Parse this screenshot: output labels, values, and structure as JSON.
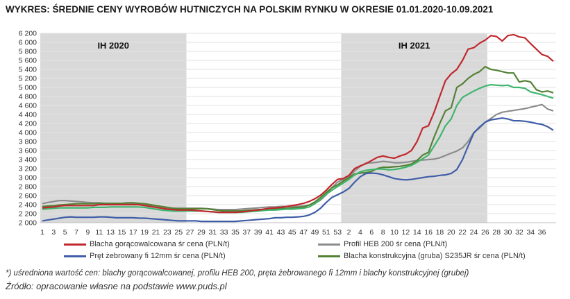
{
  "chart_data": {
    "type": "line",
    "title": "WYKRES: ŚREDNIE CENY WYROBÓW HUTNICZYCH NA POLSKIM RYNKU W OKRESIE 01.01.2020-10.09.2021",
    "x_ticks": [
      "1",
      "3",
      "5",
      "7",
      "9",
      "11",
      "13",
      "15",
      "17",
      "19",
      "21",
      "23",
      "25",
      "27",
      "29",
      "31",
      "33",
      "35",
      "37",
      "39",
      "41",
      "43",
      "45",
      "47",
      "49",
      "51",
      "53",
      "2",
      "4",
      "6",
      "8",
      "10",
      "12",
      "14",
      "16",
      "18",
      "20",
      "22",
      "24",
      "26",
      "28",
      "30",
      "32",
      "34",
      "36"
    ],
    "ylim": [
      2000,
      6200
    ],
    "y_ticks": [
      "2 000",
      "2 200",
      "2 400",
      "2 600",
      "2 800",
      "3 000",
      "3 200",
      "3 400",
      "3 600",
      "3 800",
      "4 000",
      "4 200",
      "4 400",
      "4 600",
      "4 800",
      "5 000",
      "5 200",
      "5 400",
      "5 600",
      "5 800",
      "6 000",
      "6 200"
    ],
    "bands": [
      {
        "label": "IH 2020",
        "from_week": 1,
        "to_week": 26,
        "color": "#d9d9d9"
      },
      {
        "label": "IH 2021",
        "from_week": 54,
        "to_week": 79,
        "color": "#d9d9d9"
      }
    ],
    "series": [
      {
        "name": "Blacha gorącowalcowana śr cena (PLN/t)",
        "color": "#c0282d",
        "values": [
          2330,
          2340,
          2350,
          2370,
          2380,
          2380,
          2380,
          2380,
          2380,
          2380,
          2400,
          2400,
          2400,
          2400,
          2400,
          2400,
          2400,
          2400,
          2380,
          2360,
          2340,
          2320,
          2300,
          2290,
          2280,
          2280,
          2280,
          2270,
          2260,
          2250,
          2240,
          2230,
          2230,
          2230,
          2230,
          2240,
          2250,
          2270,
          2280,
          2300,
          2320,
          2330,
          2340,
          2360,
          2380,
          2400,
          2430,
          2470,
          2530,
          2610,
          2720,
          2850,
          2960,
          2980,
          3050,
          3200,
          3260,
          3310,
          3380,
          3450,
          3480,
          3450,
          3430,
          3480,
          3520,
          3600,
          3800,
          4100,
          4150,
          4450,
          4800,
          5150,
          5300,
          5400,
          5600,
          5850,
          5880,
          5980,
          6050,
          6150,
          6130,
          6030,
          6150,
          6170,
          6120,
          6100,
          5970,
          5850,
          5730,
          5690,
          5580
        ]
      },
      {
        "name": "Profil HEB 200 śr cena (PLN/t)",
        "color": "#8c8c8c",
        "values": [
          2420,
          2450,
          2470,
          2490,
          2490,
          2480,
          2470,
          2460,
          2450,
          2440,
          2440,
          2430,
          2430,
          2430,
          2430,
          2430,
          2430,
          2420,
          2410,
          2390,
          2370,
          2350,
          2330,
          2320,
          2320,
          2320,
          2320,
          2320,
          2320,
          2310,
          2300,
          2290,
          2290,
          2290,
          2290,
          2300,
          2310,
          2320,
          2330,
          2340,
          2350,
          2350,
          2360,
          2360,
          2360,
          2360,
          2370,
          2390,
          2430,
          2500,
          2620,
          2780,
          2900,
          2960,
          3020,
          3150,
          3250,
          3320,
          3330,
          3340,
          3360,
          3350,
          3330,
          3330,
          3340,
          3360,
          3380,
          3390,
          3400,
          3410,
          3440,
          3490,
          3540,
          3590,
          3660,
          3800,
          4000,
          4100,
          4230,
          4310,
          4400,
          4450,
          4470,
          4490,
          4510,
          4530,
          4560,
          4590,
          4620,
          4520,
          4480
        ]
      },
      {
        "name": "Pręt żebrowany fi 12mm  śr cena (PLN/t)",
        "color": "#3f5ea8",
        "values": [
          2040,
          2060,
          2080,
          2100,
          2120,
          2130,
          2120,
          2120,
          2120,
          2120,
          2130,
          2130,
          2120,
          2110,
          2110,
          2110,
          2110,
          2100,
          2100,
          2090,
          2080,
          2070,
          2060,
          2050,
          2040,
          2040,
          2040,
          2040,
          2030,
          2030,
          2030,
          2030,
          2030,
          2030,
          2030,
          2040,
          2050,
          2060,
          2070,
          2080,
          2090,
          2110,
          2110,
          2120,
          2120,
          2130,
          2140,
          2170,
          2230,
          2320,
          2450,
          2560,
          2620,
          2680,
          2760,
          2900,
          3020,
          3090,
          3100,
          3090,
          3060,
          3020,
          2980,
          2960,
          2950,
          2960,
          2980,
          3000,
          3020,
          3030,
          3050,
          3060,
          3090,
          3180,
          3400,
          3700,
          3990,
          4120,
          4230,
          4280,
          4300,
          4320,
          4300,
          4260,
          4260,
          4250,
          4230,
          4200,
          4180,
          4130,
          4050
        ]
      },
      {
        "name": "Blacha konstrukcyjna (gruba) S235JR śr cena (PLN/t)",
        "color": "#548235",
        "values": [
          2360,
          2370,
          2380,
          2390,
          2400,
          2410,
          2420,
          2420,
          2420,
          2420,
          2430,
          2430,
          2430,
          2430,
          2430,
          2440,
          2440,
          2430,
          2420,
          2400,
          2380,
          2360,
          2340,
          2320,
          2310,
          2310,
          2310,
          2310,
          2310,
          2310,
          2290,
          2270,
          2260,
          2260,
          2260,
          2260,
          2270,
          2280,
          2290,
          2290,
          2300,
          2310,
          2320,
          2320,
          2330,
          2340,
          2350,
          2390,
          2460,
          2560,
          2670,
          2770,
          2840,
          2920,
          3000,
          3080,
          3100,
          3110,
          3140,
          3200,
          3230,
          3230,
          3240,
          3250,
          3270,
          3300,
          3380,
          3500,
          3560,
          3900,
          4200,
          4480,
          4550,
          5000,
          5080,
          5200,
          5290,
          5350,
          5460,
          5400,
          5380,
          5350,
          5320,
          5320,
          5120,
          5150,
          5120,
          4950,
          4900,
          4920,
          4880
        ]
      },
      {
        "name": "",
        "color": "#3fb56d",
        "values": [
          2300,
          2310,
          2320,
          2330,
          2330,
          2330,
          2330,
          2330,
          2330,
          2340,
          2340,
          2340,
          2350,
          2350,
          2350,
          2350,
          2350,
          2350,
          2340,
          2320,
          2300,
          2280,
          2270,
          2260,
          2260,
          2260,
          2260,
          2260,
          2260,
          2250,
          2240,
          2230,
          2230,
          2230,
          2230,
          2230,
          2240,
          2250,
          2260,
          2270,
          2280,
          2280,
          2290,
          2300,
          2300,
          2310,
          2320,
          2350,
          2420,
          2520,
          2630,
          2720,
          2800,
          2880,
          2960,
          3060,
          3130,
          3160,
          3180,
          3190,
          3190,
          3170,
          3180,
          3200,
          3230,
          3270,
          3340,
          3420,
          3500,
          3700,
          3900,
          4150,
          4300,
          4600,
          4780,
          4850,
          4920,
          4980,
          5030,
          5060,
          5050,
          5040,
          5050,
          5000,
          5000,
          4980,
          4900,
          4870,
          4840,
          4800,
          4760
        ]
      }
    ]
  },
  "legend": {
    "s1": "Blacha gorącowalcowana śr cena (PLN/t)",
    "s2": "Profil HEB 200 śr cena (PLN/t)",
    "s3": "Pręt żebrowany fi 12mm  śr cena (PLN/t)",
    "s4": "Blacha konstrukcyjna (gruba) S235JR śr cena (PLN/t)"
  },
  "footnote": "*) uśredniona wartość cen: blachy gorącowalcowanej, profilu HEB 200, pręta żebrowanego fi 12mm i blachy konstrukcyjnej (grubej)",
  "source": "Źródło: opracowanie własne na podstawie www.puds.pl"
}
